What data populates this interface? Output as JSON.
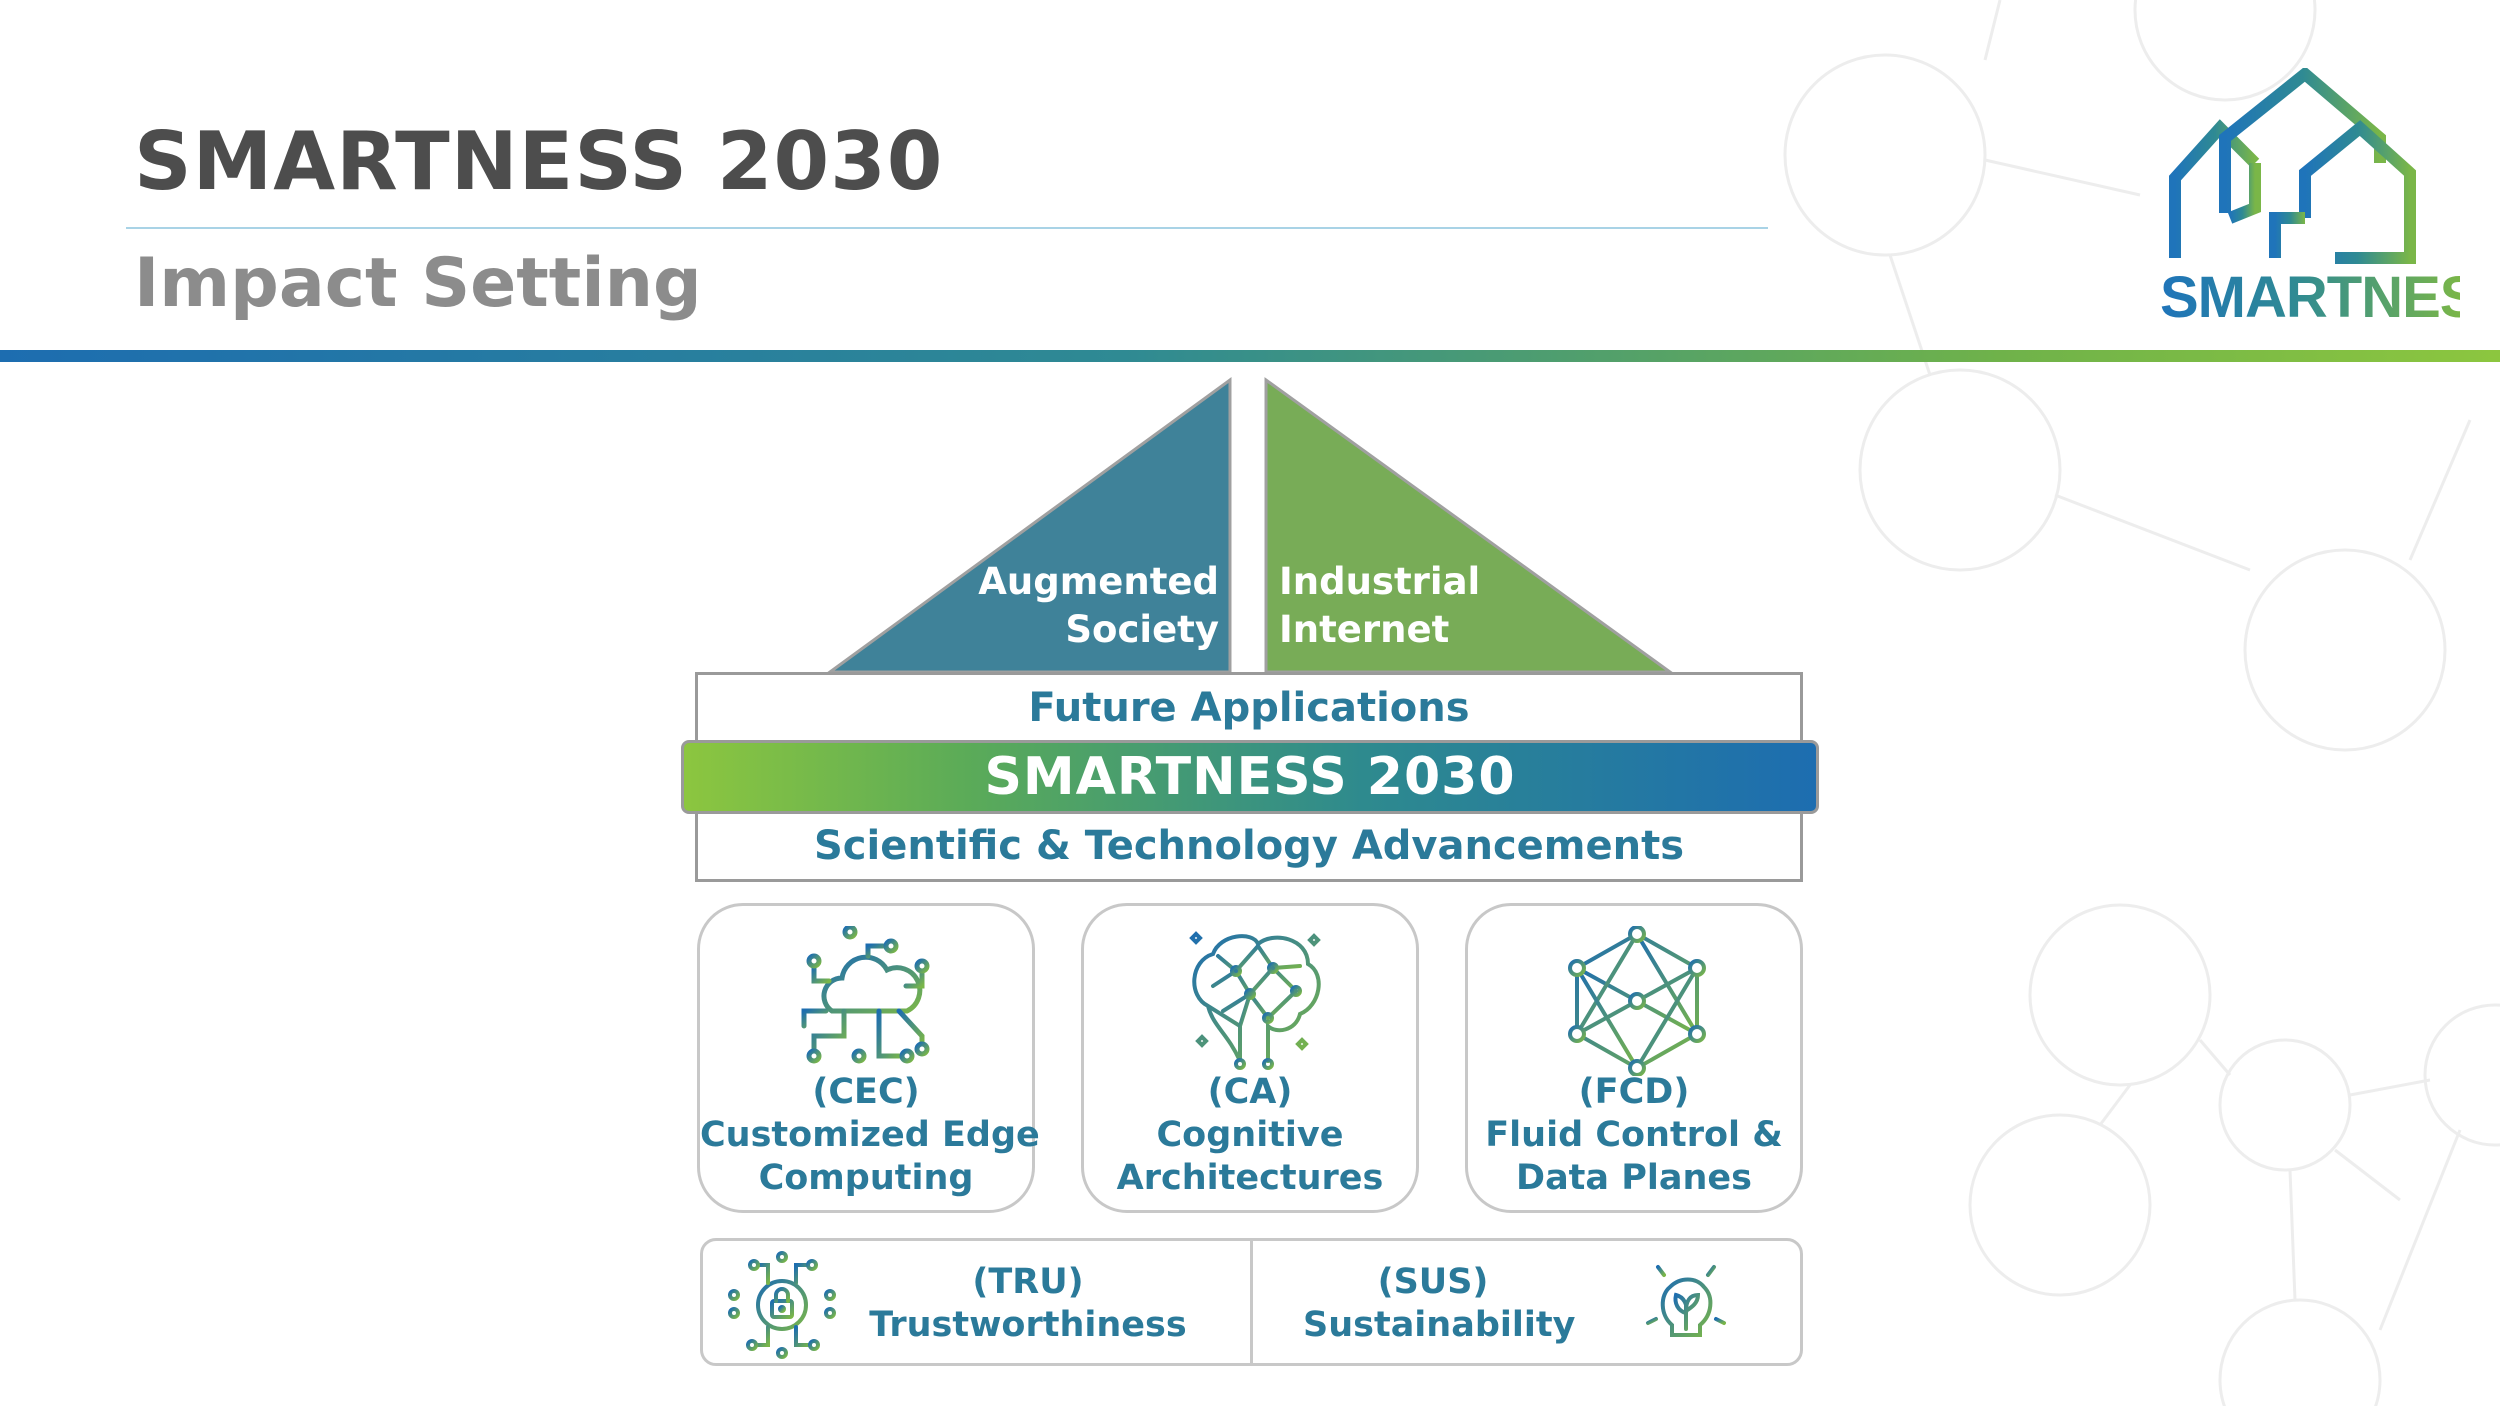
{
  "header": {
    "title": "SMARTNESS 2030",
    "subtitle": "Impact Setting"
  },
  "logo": {
    "text": "SMARTNESS",
    "icon": "house-logo-icon"
  },
  "diagram": {
    "roof_left": {
      "line1": "Augmented",
      "line2": "Society"
    },
    "roof_right": {
      "line1": "Industrial",
      "line2": "Internet"
    },
    "future_applications": "Future Applications",
    "band": "SMARTNESS 2030",
    "scientific": "Scientific & Technology Advancements",
    "pillars": [
      {
        "abbr": "(CEC)",
        "line1": "Customized Edge",
        "line2": "Computing",
        "icon": "cloud-circuit-icon"
      },
      {
        "abbr": "(CA)",
        "line1": "Cognitive",
        "line2": "Architectures",
        "icon": "brain-network-icon"
      },
      {
        "abbr": "(FCD)",
        "line1": "Fluid Control &",
        "line2": "Data Planes",
        "icon": "mesh-network-icon"
      }
    ],
    "bottom": [
      {
        "abbr": "(TRU)",
        "label": "Trustworthiness",
        "icon": "lock-circuit-icon"
      },
      {
        "abbr": "(SUS)",
        "label": "Sustainability",
        "icon": "lightbulb-leaf-icon"
      }
    ]
  },
  "colors": {
    "teal": "#3f8299",
    "green": "#78ac57",
    "text_blue": "#2b7a9a",
    "title_gray": "#4d4d4d",
    "subtitle_gray": "#8c8c8c"
  }
}
